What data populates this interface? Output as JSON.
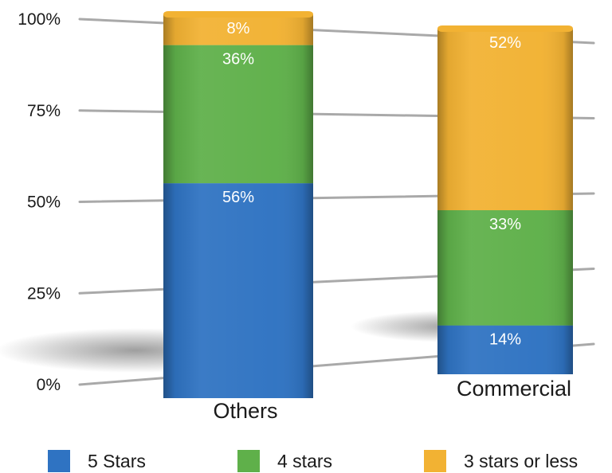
{
  "chart_data": {
    "type": "bar",
    "stacked": true,
    "categories": [
      "Others",
      "Commercial"
    ],
    "series": [
      {
        "name": "5 Stars",
        "values": [
          56,
          14
        ],
        "labels": [
          "56%",
          "14%"
        ],
        "color": "#2f73c2"
      },
      {
        "name": "4 stars",
        "values": [
          36,
          33
        ],
        "labels": [
          "36%",
          "33%"
        ],
        "color": "#5fb04a"
      },
      {
        "name": "3 stars or less",
        "values": [
          8,
          52
        ],
        "labels": [
          "8%",
          "52%"
        ],
        "color": "#f2b233"
      }
    ],
    "yticks": [
      "0%",
      "25%",
      "50%",
      "75%",
      "100%"
    ],
    "ylim": [
      0,
      100
    ],
    "grid": true,
    "legend": "bottom",
    "title": "",
    "xlabel": "",
    "ylabel": ""
  }
}
